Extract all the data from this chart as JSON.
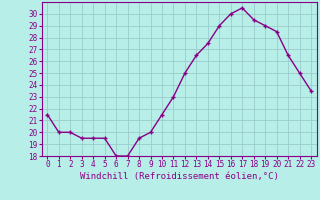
{
  "x": [
    0,
    1,
    2,
    3,
    4,
    5,
    6,
    7,
    8,
    9,
    10,
    11,
    12,
    13,
    14,
    15,
    16,
    17,
    18,
    19,
    20,
    21,
    22,
    23
  ],
  "y": [
    21.5,
    20.0,
    20.0,
    19.5,
    19.5,
    19.5,
    18.0,
    18.0,
    19.5,
    20.0,
    21.5,
    23.0,
    25.0,
    26.5,
    27.5,
    29.0,
    30.0,
    30.5,
    29.5,
    29.0,
    28.5,
    26.5,
    25.0,
    23.5
  ],
  "ylim": [
    18,
    31
  ],
  "yticks": [
    18,
    19,
    20,
    21,
    22,
    23,
    24,
    25,
    26,
    27,
    28,
    29,
    30
  ],
  "xticks": [
    0,
    1,
    2,
    3,
    4,
    5,
    6,
    7,
    8,
    9,
    10,
    11,
    12,
    13,
    14,
    15,
    16,
    17,
    18,
    19,
    20,
    21,
    22,
    23
  ],
  "line_color": "#880088",
  "marker": "+",
  "bg_color": "#b8eee8",
  "grid_color": "#99cccc",
  "xlabel": "Windchill (Refroidissement éolien,°C)",
  "tick_fontsize": 5.5,
  "xlabel_fontsize": 6.5,
  "linewidth": 1.0,
  "markersize": 3.5,
  "markeredgewidth": 1.0
}
